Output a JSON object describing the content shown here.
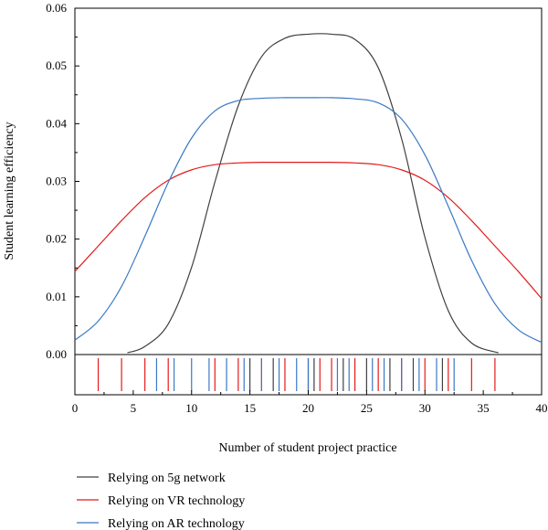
{
  "chart_data": {
    "type": "line",
    "xlabel": "Number of student project practice",
    "ylabel": "Student learning efficiency",
    "xlim": [
      0,
      40
    ],
    "ylim": [
      0,
      0.06
    ],
    "x_ticks": [
      "0",
      "5",
      "10",
      "15",
      "20",
      "25",
      "30",
      "35",
      "40"
    ],
    "y_ticks": [
      "0.00",
      "0.01",
      "0.02",
      "0.03",
      "0.04",
      "0.05",
      "0.06"
    ],
    "grid": false,
    "legend_position": "bottom-left",
    "series": [
      {
        "name": "Relying on 5g network",
        "color": "#404040",
        "x": [
          4.5,
          6,
          8,
          10,
          12,
          14,
          16,
          18,
          20,
          22,
          24,
          26,
          28,
          30,
          32,
          34,
          36.3
        ],
        "y": [
          0.0003,
          0.0014,
          0.0053,
          0.0151,
          0.0299,
          0.0431,
          0.0516,
          0.0548,
          0.0555,
          0.0555,
          0.0546,
          0.0497,
          0.0374,
          0.0203,
          0.0076,
          0.002,
          0.0003
        ],
        "rug": [
          15,
          17,
          20.5,
          23,
          25,
          27,
          29,
          31.5
        ]
      },
      {
        "name": "Relying on VR technology",
        "color": "#e41a1c",
        "x": [
          0,
          2,
          4,
          6,
          8,
          10,
          12,
          14,
          16,
          18,
          20,
          22,
          24,
          26,
          28,
          30,
          32,
          34,
          36,
          38,
          40
        ],
        "y": [
          0.0144,
          0.0188,
          0.0232,
          0.0272,
          0.0302,
          0.032,
          0.0329,
          0.0332,
          0.0333,
          0.0333,
          0.0333,
          0.0333,
          0.0332,
          0.0329,
          0.032,
          0.0302,
          0.0272,
          0.0232,
          0.0188,
          0.0144,
          0.0097
        ],
        "rug": [
          2,
          4,
          6,
          8,
          12,
          14,
          16,
          18,
          20,
          21,
          22,
          24,
          26,
          28,
          30,
          32,
          34,
          36
        ]
      },
      {
        "name": "Relying on AR technology",
        "color": "#3a78c4",
        "x": [
          0,
          2,
          4,
          6,
          8,
          10,
          12,
          14,
          16,
          18,
          20,
          22,
          24,
          26,
          28,
          30,
          32,
          34,
          36,
          38,
          40
        ],
        "y": [
          0.0025,
          0.0058,
          0.0118,
          0.0205,
          0.0298,
          0.0375,
          0.0422,
          0.044,
          0.0444,
          0.0445,
          0.0445,
          0.0445,
          0.0443,
          0.0436,
          0.0408,
          0.0346,
          0.0257,
          0.0163,
          0.0088,
          0.0043,
          0.0021
        ],
        "rug": [
          7,
          8.5,
          10,
          11.5,
          13,
          14.5,
          16,
          17.5,
          19,
          20,
          22.5,
          23.5,
          25.5,
          26.5,
          28,
          29.5,
          31,
          32.5
        ]
      }
    ]
  }
}
